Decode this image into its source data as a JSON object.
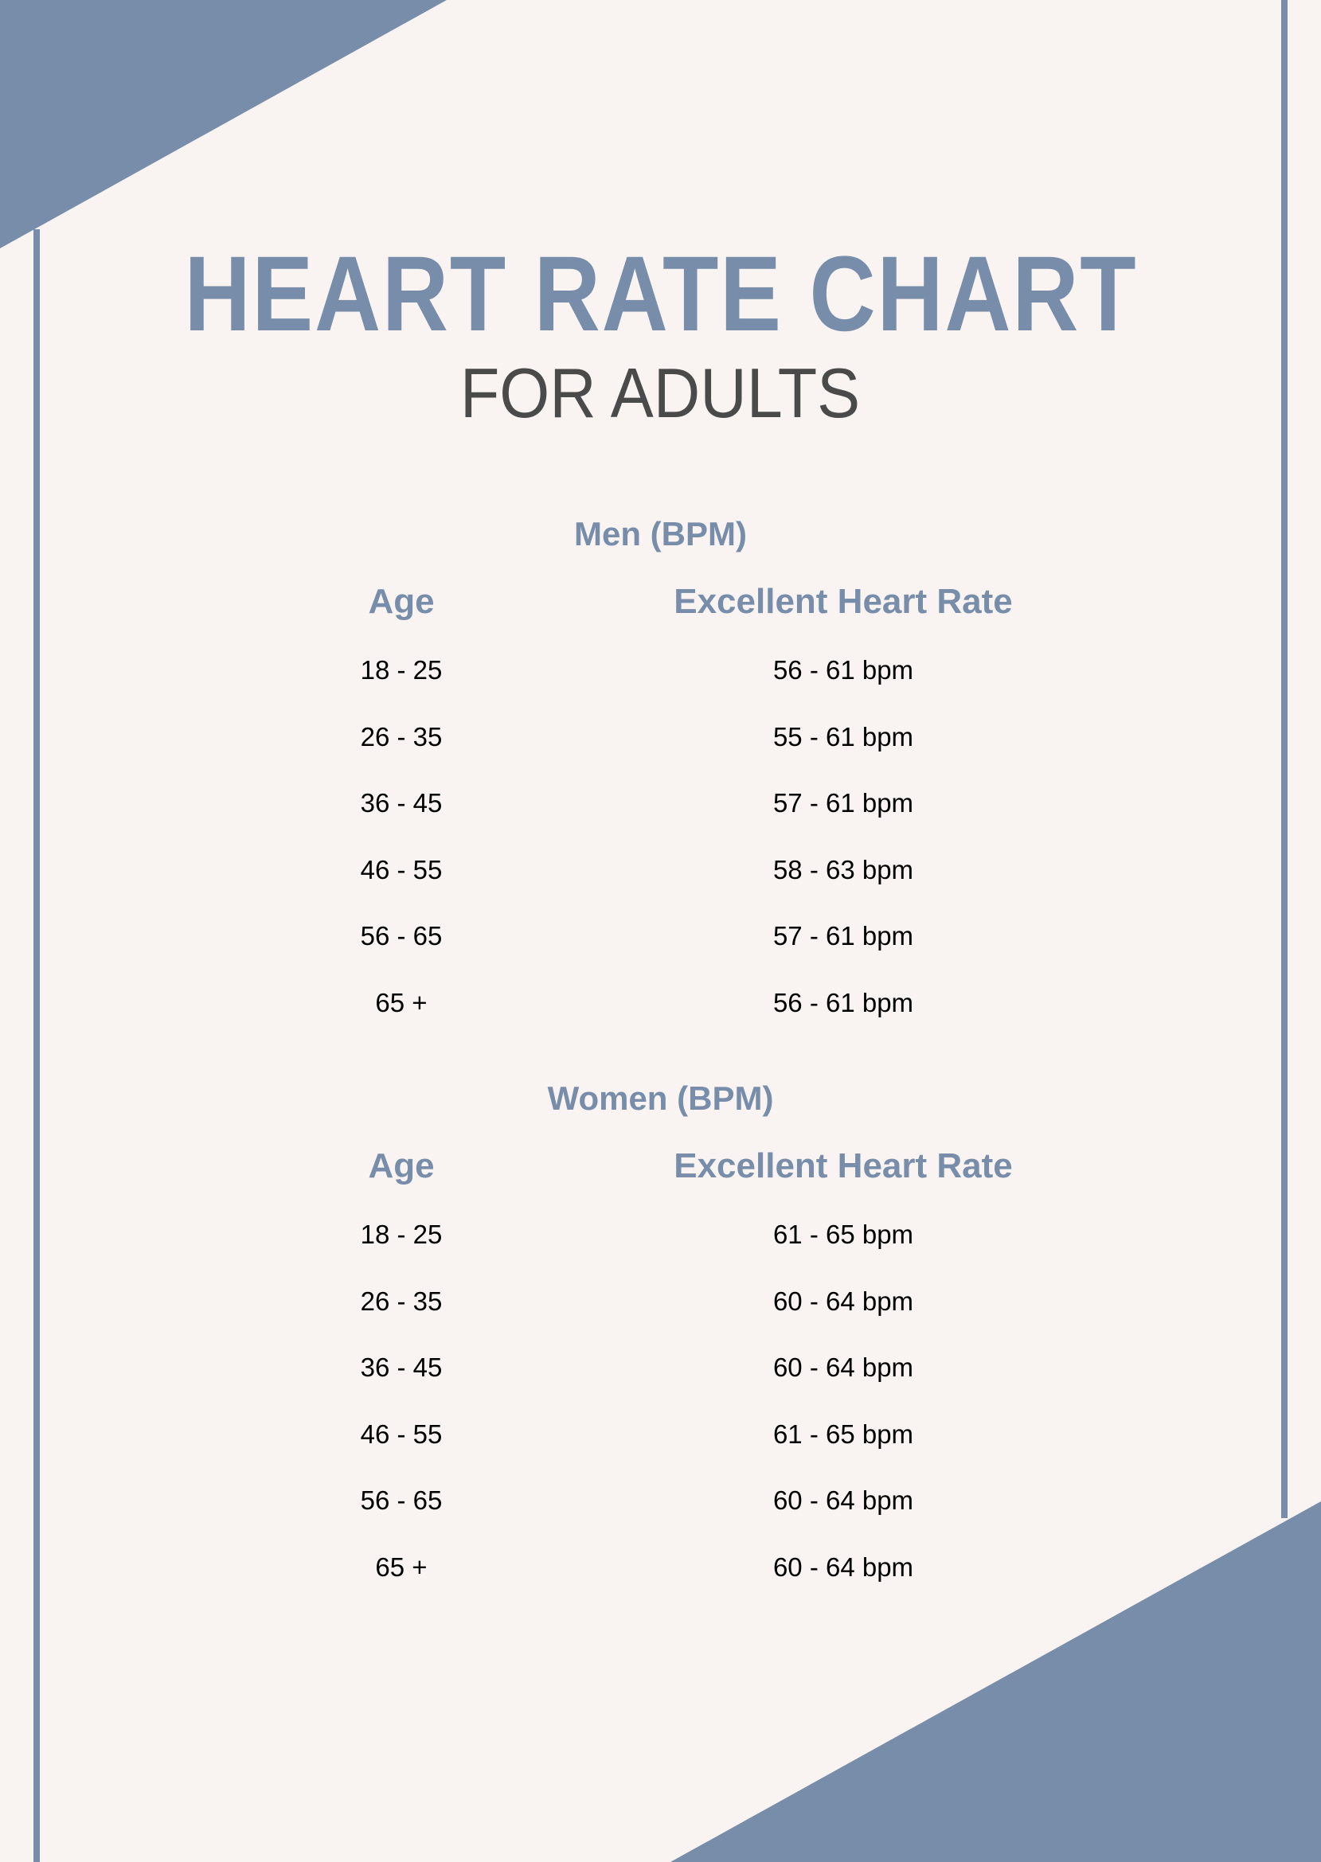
{
  "colors": {
    "accent": "#778DAA",
    "background": "#F9F4F2",
    "subtitle": "#4A4A4A"
  },
  "title": "HEART RATE CHART",
  "subtitle": "FOR ADULTS",
  "sections": [
    {
      "title": "Men (BPM)",
      "headers": [
        "Age",
        "Excellent Heart Rate"
      ],
      "rows": [
        [
          "18 - 25",
          "56 - 61 bpm"
        ],
        [
          "26 - 35",
          "55 - 61 bpm"
        ],
        [
          "36 - 45",
          "57 - 61 bpm"
        ],
        [
          "46 - 55",
          "58 - 63 bpm"
        ],
        [
          "56 - 65",
          "57 - 61 bpm"
        ],
        [
          "65 +",
          "56 - 61 bpm"
        ]
      ]
    },
    {
      "title": "Women (BPM)",
      "headers": [
        "Age",
        "Excellent Heart Rate"
      ],
      "rows": [
        [
          "18 - 25",
          "61 - 65 bpm"
        ],
        [
          "26 - 35",
          "60 - 64 bpm"
        ],
        [
          "36 - 45",
          "60 - 64 bpm"
        ],
        [
          "46 - 55",
          "61 - 65 bpm"
        ],
        [
          "56 - 65",
          "60 - 64 bpm"
        ],
        [
          "65 +",
          "60 - 64 bpm"
        ]
      ]
    }
  ]
}
